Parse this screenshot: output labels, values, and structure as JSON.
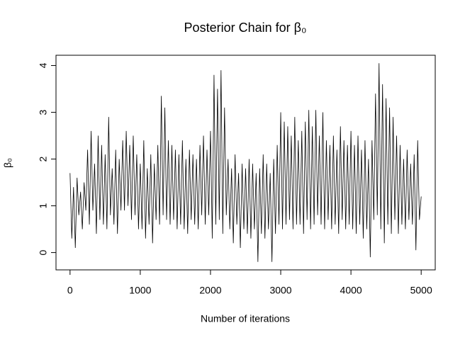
{
  "chart_data": {
    "type": "line",
    "title": "Posterior Chain for β₀",
    "x_label": "Number of iterations",
    "y_label": "β₀",
    "color": "#000000",
    "xlim": [
      -200,
      5200
    ],
    "xticks": [
      0,
      1000,
      2000,
      3000,
      4000,
      5000
    ],
    "ylim": [
      -0.37,
      4.22
    ],
    "yticks": [
      0,
      1,
      2,
      3,
      4
    ],
    "x": [
      0,
      25,
      50,
      75,
      100,
      125,
      150,
      175,
      200,
      225,
      250,
      275,
      300,
      325,
      350,
      375,
      400,
      425,
      450,
      475,
      500,
      525,
      550,
      575,
      600,
      625,
      650,
      675,
      700,
      725,
      750,
      775,
      800,
      825,
      850,
      875,
      900,
      925,
      950,
      975,
      1000,
      1025,
      1050,
      1075,
      1100,
      1125,
      1150,
      1175,
      1200,
      1225,
      1250,
      1275,
      1300,
      1325,
      1350,
      1375,
      1400,
      1425,
      1450,
      1475,
      1500,
      1525,
      1550,
      1575,
      1600,
      1625,
      1650,
      1675,
      1700,
      1725,
      1750,
      1775,
      1800,
      1825,
      1850,
      1875,
      1900,
      1925,
      1950,
      1975,
      2000,
      2025,
      2050,
      2075,
      2100,
      2125,
      2150,
      2175,
      2200,
      2225,
      2250,
      2275,
      2300,
      2325,
      2350,
      2375,
      2400,
      2425,
      2450,
      2475,
      2500,
      2525,
      2550,
      2575,
      2600,
      2625,
      2650,
      2675,
      2700,
      2725,
      2750,
      2775,
      2800,
      2825,
      2850,
      2875,
      2900,
      2925,
      2950,
      2975,
      3000,
      3025,
      3050,
      3075,
      3100,
      3125,
      3150,
      3175,
      3200,
      3225,
      3250,
      3275,
      3300,
      3325,
      3350,
      3375,
      3400,
      3425,
      3450,
      3475,
      3500,
      3525,
      3550,
      3575,
      3600,
      3625,
      3650,
      3675,
      3700,
      3725,
      3750,
      3775,
      3800,
      3825,
      3850,
      3875,
      3900,
      3925,
      3950,
      3975,
      4000,
      4025,
      4050,
      4075,
      4100,
      4125,
      4150,
      4175,
      4200,
      4225,
      4250,
      4275,
      4300,
      4325,
      4350,
      4375,
      4400,
      4425,
      4450,
      4475,
      4500,
      4525,
      4550,
      4575,
      4600,
      4625,
      4650,
      4675,
      4700,
      4725,
      4750,
      4775,
      4800,
      4825,
      4850,
      4875,
      4900,
      4925,
      4950,
      4975,
      5000
    ],
    "values": [
      1.7,
      0.3,
      1.4,
      0.1,
      1.6,
      0.8,
      1.3,
      0.5,
      1.5,
      0.9,
      2.2,
      0.6,
      2.6,
      0.9,
      1.9,
      0.4,
      2.5,
      0.7,
      2.3,
      0.6,
      2.1,
      0.5,
      2.9,
      0.8,
      1.8,
      0.6,
      2.2,
      0.4,
      2.0,
      0.9,
      2.4,
      0.9,
      2.6,
      1.0,
      2.3,
      0.7,
      2.5,
      0.8,
      2.1,
      0.5,
      1.9,
      0.5,
      2.4,
      0.3,
      1.8,
      0.6,
      2.1,
      0.2,
      1.9,
      0.7,
      2.3,
      0.6,
      3.35,
      0.8,
      3.1,
      0.7,
      2.4,
      0.6,
      2.3,
      0.7,
      2.2,
      0.5,
      2.1,
      0.6,
      2.4,
      0.5,
      2.0,
      0.4,
      2.2,
      0.7,
      2.1,
      0.6,
      2.0,
      0.5,
      2.3,
      0.8,
      2.5,
      0.6,
      2.2,
      0.8,
      2.6,
      0.3,
      3.8,
      0.6,
      3.5,
      0.7,
      3.9,
      0.4,
      3.1,
      0.8,
      2.0,
      0.5,
      1.8,
      0.2,
      2.1,
      0.6,
      1.7,
      0.1,
      1.9,
      0.5,
      1.8,
      0.4,
      2.0,
      0.3,
      1.9,
      0.5,
      1.7,
      -0.2,
      1.8,
      0.4,
      2.1,
      0.3,
      1.9,
      0.5,
      1.7,
      -0.2,
      2.0,
      0.4,
      2.3,
      0.6,
      3.0,
      0.5,
      2.8,
      0.6,
      2.7,
      0.7,
      2.5,
      0.5,
      2.9,
      0.6,
      2.4,
      0.6,
      2.6,
      0.4,
      2.8,
      0.7,
      3.05,
      0.5,
      2.7,
      0.6,
      3.05,
      0.8,
      2.5,
      0.6,
      3.0,
      0.5,
      2.4,
      0.7,
      2.3,
      0.5,
      2.5,
      0.6,
      2.2,
      0.4,
      2.7,
      0.7,
      2.4,
      0.5,
      2.3,
      0.6,
      2.6,
      0.5,
      2.3,
      0.4,
      2.5,
      0.6,
      2.2,
      0.3,
      2.4,
      0.5,
      2.0,
      -0.1,
      2.4,
      0.7,
      3.4,
      0.8,
      4.05,
      0.5,
      3.6,
      0.2,
      3.3,
      0.6,
      3.1,
      0.4,
      2.9,
      0.7,
      2.5,
      0.4,
      2.3,
      0.6,
      2.0,
      0.5,
      2.2,
      0.7,
      1.9,
      0.6,
      2.1,
      0.05,
      2.4,
      0.7,
      1.2
    ]
  }
}
